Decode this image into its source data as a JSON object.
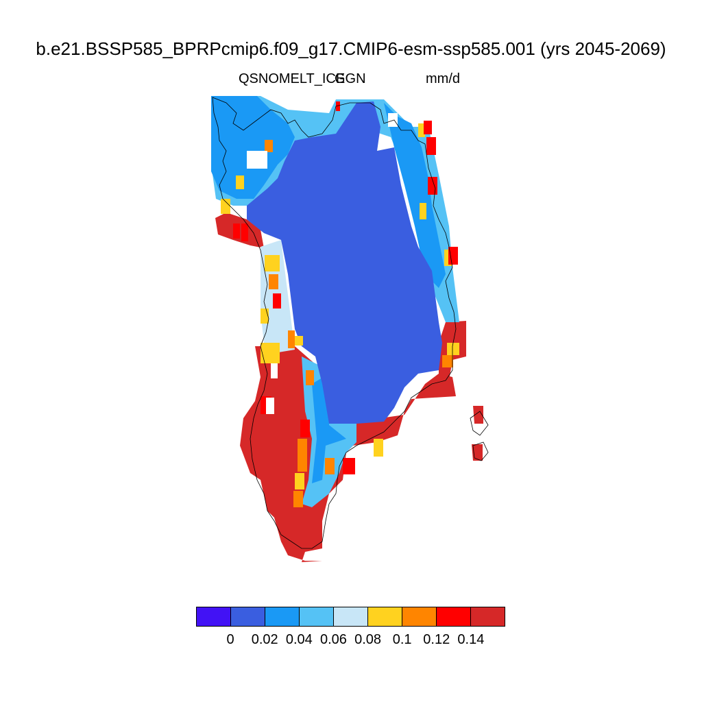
{
  "title": "b.e21.BSSP585_BPRPcmip6.f09_g17.CMIP6-esm-ssp585.001 (yrs 2045-2069)",
  "variable": "QSNOMELT_ICE",
  "region": "GGN",
  "units": "mm/d",
  "colors": {
    "c0": "#4212f5",
    "c1": "#3a5ee0",
    "c2": "#1a99f5",
    "c3": "#55c2f5",
    "c4": "#c8e6f7",
    "c5": "#ffd21f",
    "c6": "#ff8500",
    "c7": "#ff0000",
    "c8": "#d62828",
    "coast": "#000000"
  },
  "colorbar": {
    "colors": [
      "#4212f5",
      "#3a5ee0",
      "#1a99f5",
      "#55c2f5",
      "#c8e6f7",
      "#ffd21f",
      "#ff8500",
      "#ff0000",
      "#d62828"
    ],
    "labels": [
      "0",
      "0.02",
      "0.04",
      "0.06",
      "0.08",
      "0.1",
      "0.12",
      "0.14"
    ]
  }
}
